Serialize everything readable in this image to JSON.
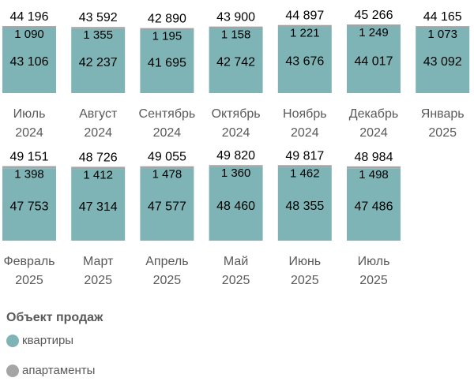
{
  "chart_data": {
    "type": "bar",
    "stacked": true,
    "categories": [
      [
        "Июль",
        "2024"
      ],
      [
        "Август",
        "2024"
      ],
      [
        "Сентябрь",
        "2024"
      ],
      [
        "Октябрь",
        "2024"
      ],
      [
        "Ноябрь",
        "2024"
      ],
      [
        "Декабрь",
        "2024"
      ],
      [
        "Январь",
        "2025"
      ],
      [
        "Февраль",
        "2025"
      ],
      [
        "Март",
        "2025"
      ],
      [
        "Апрель",
        "2025"
      ],
      [
        "Май",
        "2025"
      ],
      [
        "Июнь",
        "2025"
      ],
      [
        "Июль",
        "2025"
      ]
    ],
    "series": [
      {
        "name": "квартиры",
        "color": "#7fb4b6",
        "values": [
          43106,
          42237,
          41695,
          42742,
          43676,
          44017,
          43092,
          47753,
          47314,
          47577,
          48460,
          48355,
          47486
        ],
        "labels": [
          "43 106",
          "42 237",
          "41 695",
          "42 742",
          "43 676",
          "44 017",
          "43 092",
          "47 753",
          "47 314",
          "47 577",
          "48 460",
          "48 355",
          "47 486"
        ]
      },
      {
        "name": "апартаменты",
        "color": "#a5a5a5",
        "values": [
          1090,
          1355,
          1195,
          1158,
          1221,
          1249,
          1073,
          1398,
          1412,
          1478,
          1360,
          1462,
          1498
        ],
        "labels": [
          "1 090",
          "1 355",
          "1 195",
          "1 158",
          "1 221",
          "1 249",
          "1 073",
          "1 398",
          "1 412",
          "1 478",
          "1 360",
          "1 462",
          "1 498"
        ]
      }
    ],
    "totals": [
      44196,
      43592,
      42890,
      43900,
      44897,
      45266,
      44165,
      49151,
      48726,
      49055,
      49820,
      49817,
      48984
    ],
    "total_labels": [
      "44 196",
      "43 592",
      "42 890",
      "43 900",
      "44 897",
      "45 266",
      "44 165",
      "49 151",
      "48 726",
      "49 055",
      "49 820",
      "49 817",
      "48 984"
    ],
    "rows": 2,
    "title": "",
    "xlabel": "",
    "ylabel": ""
  },
  "legend": {
    "title": "Объект продаж",
    "items": [
      {
        "label": "квартиры",
        "color": "#7fb4b6"
      },
      {
        "label": "апартаменты",
        "color": "#a5a5a5"
      }
    ]
  }
}
